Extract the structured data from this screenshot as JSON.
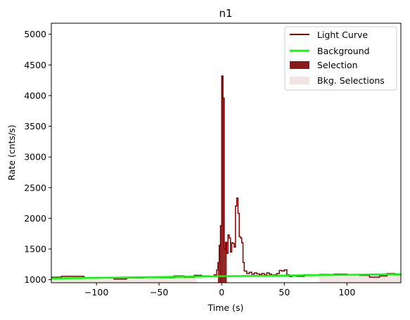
{
  "chart_data": {
    "type": "line",
    "title": "n1",
    "xlabel": "Time (s)",
    "ylabel": "Rate (cnts/s)",
    "xlim": [
      -136,
      143
    ],
    "ylim": [
      950,
      5180
    ],
    "xticks": [
      -100,
      -50,
      0,
      50,
      100
    ],
    "yticks": [
      1000,
      1500,
      2000,
      2500,
      3000,
      3500,
      4000,
      4500,
      5000
    ],
    "grid": false,
    "legend_position": "top-right",
    "legend": [
      "Light Curve",
      "Background",
      "Selection",
      "Bkg. Selections"
    ],
    "colors": {
      "light_curve": "#7f0000",
      "background": "#00ff00",
      "selection": "#8b1a1a",
      "bkg_selection": "#f2e4e2"
    },
    "light_curve": {
      "x": [
        -136,
        -128,
        -110,
        -96,
        -86,
        -76,
        -62,
        -50,
        -38,
        -30,
        -22,
        -16,
        -10,
        -6,
        -4,
        -3,
        -2,
        -1,
        0,
        1,
        2,
        3,
        4,
        5,
        6,
        7,
        8,
        9,
        10,
        11,
        12,
        13,
        14,
        15,
        16,
        17,
        18,
        20,
        22,
        24,
        26,
        28,
        30,
        32,
        34,
        36,
        38,
        40,
        42,
        44,
        46,
        48,
        50,
        52,
        54,
        56,
        60,
        66,
        72,
        78,
        90,
        100,
        110,
        118,
        126,
        132,
        138,
        143
      ],
      "y": [
        1040,
        1055,
        1035,
        1030,
        1010,
        1030,
        1040,
        1035,
        1060,
        1040,
        1070,
        1060,
        1050,
        1080,
        1160,
        1280,
        1560,
        1880,
        4320,
        3960,
        1500,
        1610,
        1430,
        1730,
        1680,
        1450,
        1600,
        1590,
        1530,
        2200,
        2330,
        2080,
        1700,
        1680,
        1600,
        1280,
        1140,
        1100,
        1120,
        1090,
        1110,
        1095,
        1085,
        1100,
        1080,
        1110,
        1090,
        1075,
        1080,
        1100,
        1150,
        1140,
        1160,
        1080,
        1050,
        1065,
        1055,
        1080,
        1070,
        1085,
        1090,
        1080,
        1070,
        1040,
        1060,
        1100,
        1080,
        1080
      ]
    },
    "background": {
      "x": [
        -136,
        143
      ],
      "y": [
        1022,
        1090
      ]
    },
    "selection": [
      -3,
      4
    ],
    "bkg_selections": [
      [
        -136,
        -20
      ],
      [
        78,
        143
      ]
    ]
  }
}
